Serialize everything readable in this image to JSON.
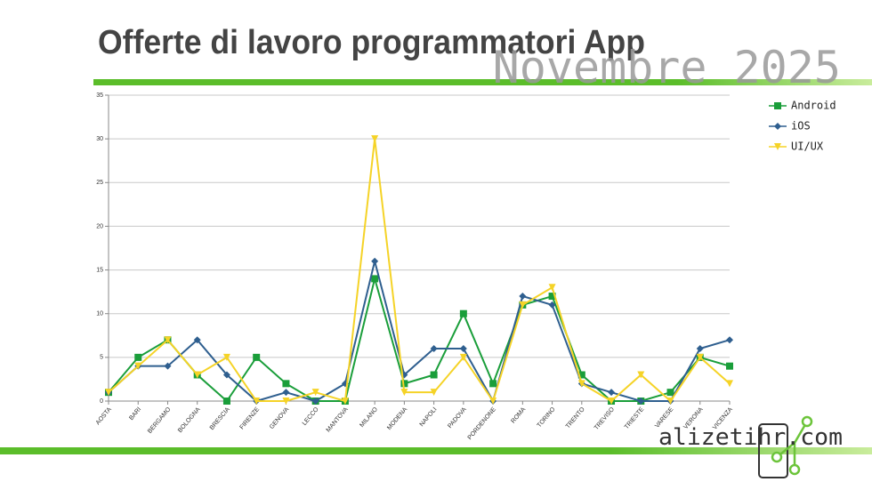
{
  "header": {
    "title": "Offerte di lavoro programmatori App",
    "subtitle": "Novembre 2025"
  },
  "logo": {
    "text": "alizetihr.com"
  },
  "chart_data": {
    "type": "line",
    "categories": [
      "AOSTA",
      "BARI",
      "BERGAMO",
      "BOLOGNA",
      "BRESCIA",
      "FIRENZE",
      "GENOVA",
      "LECCO",
      "MANTOVA",
      "MILANO",
      "MODENA",
      "NAPOLI",
      "PADOVA",
      "PORDENONE",
      "ROMA",
      "TORINO",
      "TRENTO",
      "TREVISO",
      "TRIESTE",
      "VARESE",
      "VERONA",
      "VICENZA"
    ],
    "series": [
      {
        "name": "Android",
        "color": "#1a9e3a",
        "marker": "square",
        "values": [
          1,
          5,
          7,
          3,
          0,
          5,
          2,
          0,
          0,
          14,
          2,
          3,
          10,
          2,
          11,
          12,
          3,
          0,
          0,
          1,
          5,
          4
        ]
      },
      {
        "name": "iOS",
        "color": "#2f5f8f",
        "marker": "diamond",
        "values": [
          1,
          4,
          4,
          7,
          3,
          0,
          1,
          0,
          2,
          16,
          3,
          6,
          6,
          0,
          12,
          11,
          2,
          1,
          0,
          0,
          6,
          7
        ]
      },
      {
        "name": "UI/UX",
        "color": "#f5d327",
        "marker": "triangle",
        "values": [
          1,
          4,
          7,
          3,
          5,
          0,
          0,
          1,
          0,
          30,
          1,
          1,
          5,
          0,
          11,
          13,
          2,
          0,
          3,
          0,
          5,
          2
        ]
      }
    ],
    "ylim": [
      0,
      35
    ],
    "yticks": [
      0,
      5,
      10,
      15,
      20,
      25,
      30,
      35
    ],
    "grid": true,
    "legend": "right"
  }
}
